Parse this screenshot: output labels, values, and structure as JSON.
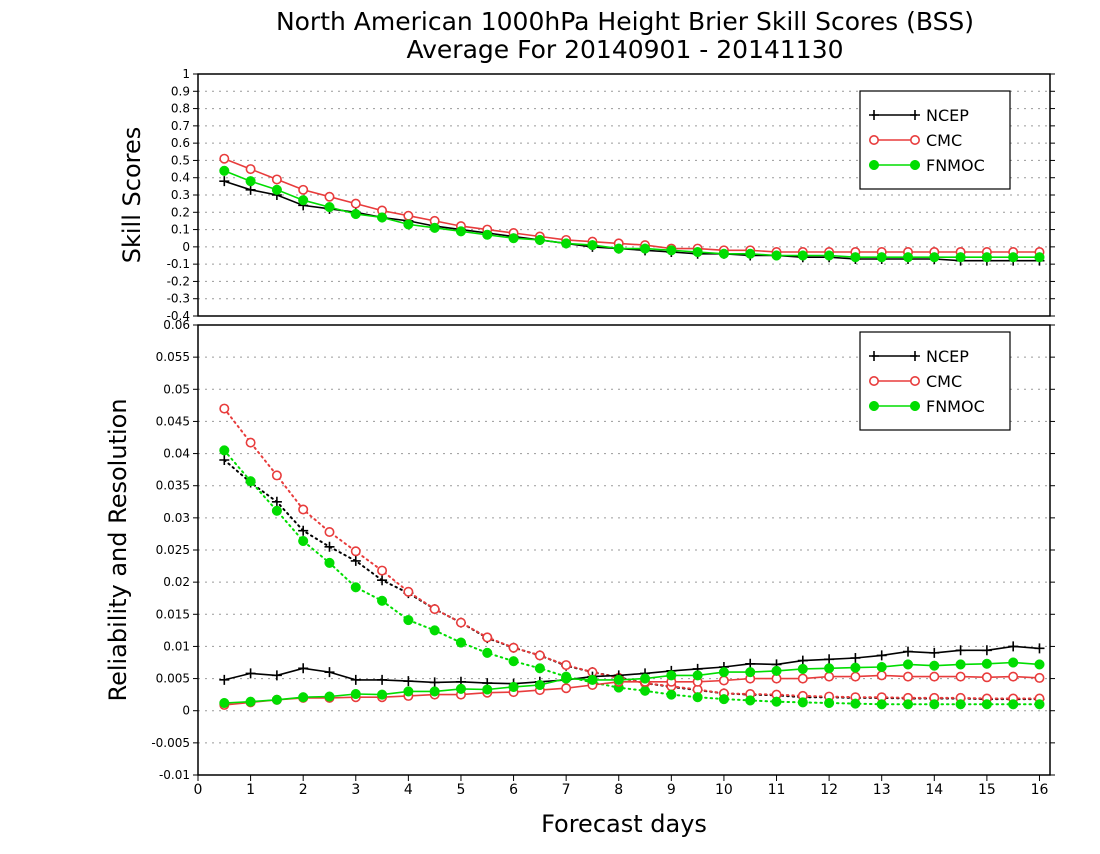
{
  "chart_data": [
    {
      "type": "line",
      "panel": "skill-scores",
      "title": "North American 1000hPa Height Brier Skill Scores (BSS)",
      "subtitle": "Average For 20140901 - 20141130",
      "xlabel": "",
      "ylabel": "Skill Scores",
      "xlim": [
        0,
        16.2
      ],
      "ylim": [
        -0.4,
        1
      ],
      "yticks": [
        -0.4,
        -0.3,
        -0.2,
        -0.1,
        0,
        0.1,
        0.2,
        0.3,
        0.4,
        0.5,
        0.6,
        0.7,
        0.8,
        0.9,
        1
      ],
      "ytick_labels": [
        "-0.4",
        "-0.3",
        "-0.2",
        "-0.1",
        "0",
        "0.1",
        "0.2",
        "0.3",
        "0.4",
        "0.5",
        "0.6",
        "0.7",
        "0.8",
        "0.9",
        "1"
      ],
      "grid": true,
      "legend": "top-right",
      "x": [
        0.5,
        1,
        1.5,
        2,
        2.5,
        3,
        3.5,
        4,
        4.5,
        5,
        5.5,
        6,
        6.5,
        7,
        7.5,
        8,
        8.5,
        9,
        9.5,
        10,
        10.5,
        11,
        11.5,
        12,
        12.5,
        13,
        13.5,
        14,
        14.5,
        15,
        15.5,
        16
      ],
      "series": [
        {
          "name": "NCEP",
          "color": "#000000",
          "marker": "plus",
          "style": "solid",
          "values": [
            0.38,
            0.33,
            0.3,
            0.24,
            0.22,
            0.2,
            0.17,
            0.15,
            0.12,
            0.1,
            0.08,
            0.06,
            0.04,
            0.02,
            0.0,
            -0.01,
            -0.02,
            -0.03,
            -0.04,
            -0.04,
            -0.05,
            -0.05,
            -0.06,
            -0.06,
            -0.07,
            -0.07,
            -0.07,
            -0.07,
            -0.08,
            -0.08,
            -0.08,
            -0.08
          ]
        },
        {
          "name": "CMC",
          "color": "#e83c3c",
          "marker": "open-circle",
          "style": "solid",
          "values": [
            0.51,
            0.45,
            0.39,
            0.33,
            0.29,
            0.25,
            0.21,
            0.18,
            0.15,
            0.12,
            0.1,
            0.08,
            0.06,
            0.04,
            0.03,
            0.02,
            0.01,
            -0.01,
            -0.01,
            -0.02,
            -0.02,
            -0.03,
            -0.03,
            -0.03,
            -0.03,
            -0.03,
            -0.03,
            -0.03,
            -0.03,
            -0.03,
            -0.03,
            -0.03
          ]
        },
        {
          "name": "FNMOC",
          "color": "#00dd00",
          "marker": "filled-circle",
          "style": "solid",
          "values": [
            0.44,
            0.38,
            0.33,
            0.27,
            0.23,
            0.19,
            0.17,
            0.13,
            0.11,
            0.09,
            0.07,
            0.05,
            0.04,
            0.02,
            0.01,
            -0.01,
            -0.01,
            -0.02,
            -0.03,
            -0.04,
            -0.04,
            -0.05,
            -0.05,
            -0.05,
            -0.06,
            -0.06,
            -0.06,
            -0.06,
            -0.06,
            -0.06,
            -0.06,
            -0.06
          ]
        }
      ]
    },
    {
      "type": "line",
      "panel": "reliability-resolution",
      "xlabel": "Forecast days",
      "ylabel": "Reliability and Resolution",
      "xlim": [
        0,
        16.2
      ],
      "ylim": [
        -0.01,
        0.06
      ],
      "xticks": [
        0,
        1,
        2,
        3,
        4,
        5,
        6,
        7,
        8,
        9,
        10,
        11,
        12,
        13,
        14,
        15,
        16
      ],
      "xtick_labels": [
        "0",
        "1",
        "2",
        "3",
        "4",
        "5",
        "6",
        "7",
        "8",
        "9",
        "10",
        "11",
        "12",
        "13",
        "14",
        "15",
        "16"
      ],
      "yticks": [
        -0.01,
        -0.005,
        0,
        0.005,
        0.01,
        0.015,
        0.02,
        0.025,
        0.03,
        0.035,
        0.04,
        0.045,
        0.05,
        0.055,
        0.06
      ],
      "ytick_labels": [
        "-0.01",
        "-0.005",
        "0",
        "0.005",
        "0.01",
        "0.015",
        "0.02",
        "0.025",
        "0.03",
        "0.035",
        "0.04",
        "0.045",
        "0.05",
        "0.055",
        "0.06"
      ],
      "grid": true,
      "legend": "top-right",
      "x": [
        0.5,
        1,
        1.5,
        2,
        2.5,
        3,
        3.5,
        4,
        4.5,
        5,
        5.5,
        6,
        6.5,
        7,
        7.5,
        8,
        8.5,
        9,
        9.5,
        10,
        10.5,
        11,
        11.5,
        12,
        12.5,
        13,
        13.5,
        14,
        14.5,
        15,
        15.5,
        16
      ],
      "series": [
        {
          "name": "NCEP",
          "color": "#000000",
          "marker": "plus",
          "style": "solid",
          "values": [
            0.0048,
            0.0058,
            0.0055,
            0.0066,
            0.006,
            0.0048,
            0.0048,
            0.0046,
            0.0044,
            0.0045,
            0.0043,
            0.0042,
            0.0045,
            0.0048,
            0.0053,
            0.0055,
            0.0058,
            0.0062,
            0.0065,
            0.0068,
            0.0073,
            0.0072,
            0.0078,
            0.008,
            0.0082,
            0.0086,
            0.0092,
            0.009,
            0.0094,
            0.0094,
            0.01,
            0.0097
          ]
        },
        {
          "name": "CMC",
          "color": "#e83c3c",
          "marker": "open-circle",
          "style": "solid",
          "values": [
            0.0009,
            0.0013,
            0.0017,
            0.002,
            0.002,
            0.0021,
            0.0021,
            0.0023,
            0.0025,
            0.0025,
            0.0028,
            0.0029,
            0.0032,
            0.0035,
            0.004,
            0.0045,
            0.0045,
            0.0045,
            0.0045,
            0.0047,
            0.005,
            0.005,
            0.005,
            0.0053,
            0.0053,
            0.0055,
            0.0053,
            0.0053,
            0.0053,
            0.0052,
            0.0053,
            0.0051
          ]
        },
        {
          "name": "FNMOC",
          "color": "#00dd00",
          "marker": "filled-circle",
          "style": "solid",
          "values": [
            0.0012,
            0.0014,
            0.0017,
            0.0021,
            0.0022,
            0.0026,
            0.0025,
            0.003,
            0.003,
            0.0034,
            0.0033,
            0.0037,
            0.004,
            0.005,
            0.0048,
            0.0048,
            0.005,
            0.0055,
            0.0055,
            0.006,
            0.006,
            0.0062,
            0.0065,
            0.0066,
            0.0067,
            0.0068,
            0.0072,
            0.007,
            0.0072,
            0.0073,
            0.0075,
            0.0072
          ]
        },
        {
          "name": "NCEP",
          "color": "#000000",
          "marker": "plus",
          "style": "dotted",
          "legend": false,
          "values": [
            0.039,
            0.0355,
            0.0325,
            0.028,
            0.0255,
            0.0233,
            0.0203,
            0.0183,
            0.0158,
            0.0137,
            0.0113,
            0.0098,
            0.0086,
            0.007,
            0.006,
            0.0052,
            0.0043,
            0.0037,
            0.0032,
            0.0027,
            0.0025,
            0.0024,
            0.0021,
            0.0021,
            0.002,
            0.002,
            0.0019,
            0.0019,
            0.0019,
            0.0018,
            0.0018,
            0.0018
          ]
        },
        {
          "name": "CMC",
          "color": "#e83c3c",
          "marker": "open-circle",
          "style": "dotted",
          "legend": false,
          "values": [
            0.047,
            0.0417,
            0.0366,
            0.0313,
            0.0278,
            0.0248,
            0.0218,
            0.0185,
            0.0158,
            0.0137,
            0.0114,
            0.0098,
            0.0086,
            0.0071,
            0.006,
            0.0051,
            0.0043,
            0.0038,
            0.0033,
            0.0027,
            0.0026,
            0.0025,
            0.0023,
            0.0022,
            0.0021,
            0.0021,
            0.002,
            0.002,
            0.002,
            0.0019,
            0.0019,
            0.0019
          ]
        },
        {
          "name": "FNMOC",
          "color": "#00dd00",
          "marker": "filled-circle",
          "style": "dotted",
          "legend": false,
          "values": [
            0.0405,
            0.0357,
            0.0311,
            0.0264,
            0.023,
            0.0192,
            0.0171,
            0.0141,
            0.0125,
            0.0106,
            0.009,
            0.0077,
            0.0066,
            0.0053,
            0.0044,
            0.0036,
            0.0031,
            0.0025,
            0.0021,
            0.0018,
            0.0016,
            0.0014,
            0.0013,
            0.0012,
            0.0011,
            0.001,
            0.001,
            0.001,
            0.001,
            0.001,
            0.001,
            0.001
          ]
        }
      ]
    }
  ]
}
